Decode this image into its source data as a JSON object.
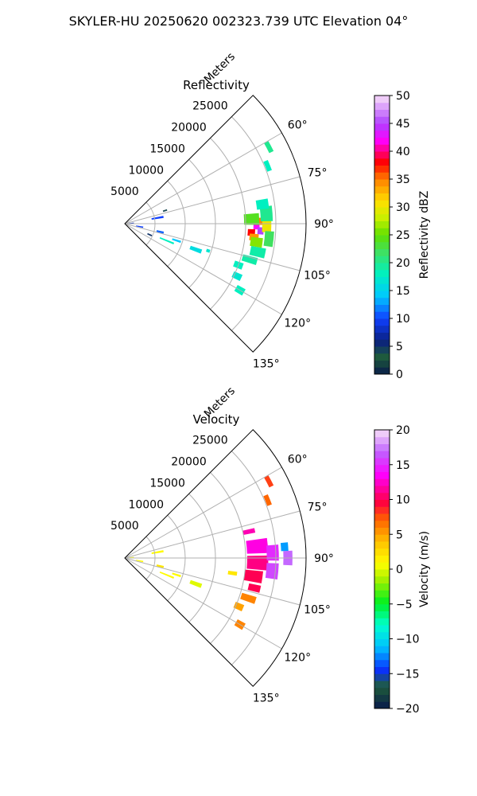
{
  "title": "SKYLER-HU  20250620  002323.739 UTC Elevation 04°",
  "colors": {
    "grid": "#b0b0b0",
    "axis": "#000000"
  },
  "chart_data": [
    {
      "type": "polar-ppi",
      "title": "Reflectivity",
      "radial_label": "Meters",
      "radial_ticks": [
        "5000",
        "10000",
        "15000",
        "20000",
        "25000"
      ],
      "radial_tick_values": [
        5000,
        10000,
        15000,
        20000,
        25000
      ],
      "rlim": [
        0,
        30000
      ],
      "theta_ticks": [
        "60°",
        "75°",
        "90°",
        "105°",
        "120°",
        "135°"
      ],
      "theta_tick_values": [
        60,
        75,
        90,
        105,
        120,
        135
      ],
      "theta_range": [
        45,
        135
      ],
      "grid": true,
      "colorbar": {
        "label": "Reflectivity dBZ",
        "ticks": [
          "0",
          "5",
          "10",
          "15",
          "20",
          "25",
          "30",
          "35",
          "40",
          "45",
          "50"
        ],
        "range": [
          0,
          50
        ]
      },
      "echoes": [
        {
          "az": 91,
          "r": 21800,
          "daz": 3,
          "dr": 1000,
          "value": 42
        },
        {
          "az": 93,
          "r": 22500,
          "daz": 3,
          "dr": 1000,
          "value": 45
        },
        {
          "az": 94,
          "r": 21000,
          "daz": 3,
          "dr": 1200,
          "value": 38
        },
        {
          "az": 89,
          "r": 22800,
          "daz": 3,
          "dr": 1200,
          "value": 35
        },
        {
          "az": 96,
          "r": 21500,
          "daz": 3,
          "dr": 1500,
          "value": 34
        },
        {
          "az": 91,
          "r": 23500,
          "daz": 5,
          "dr": 1500,
          "value": 30
        },
        {
          "az": 98,
          "r": 22000,
          "daz": 4,
          "dr": 2000,
          "value": 26
        },
        {
          "az": 88,
          "r": 21000,
          "daz": 5,
          "dr": 2500,
          "value": 24
        },
        {
          "az": 96,
          "r": 24000,
          "daz": 6,
          "dr": 1500,
          "value": 22
        },
        {
          "az": 86,
          "r": 23500,
          "daz": 6,
          "dr": 2000,
          "value": 20
        },
        {
          "az": 102,
          "r": 22500,
          "daz": 4,
          "dr": 2500,
          "value": 19
        },
        {
          "az": 82,
          "r": 23000,
          "daz": 4,
          "dr": 2000,
          "value": 18
        },
        {
          "az": 62,
          "r": 27000,
          "daz": 4,
          "dr": 800,
          "value": 20
        },
        {
          "az": 68,
          "r": 25500,
          "daz": 4,
          "dr": 800,
          "value": 18
        },
        {
          "az": 106,
          "r": 21500,
          "daz": 3,
          "dr": 2500,
          "value": 19
        },
        {
          "az": 110,
          "r": 20000,
          "daz": 3,
          "dr": 1500,
          "value": 18
        },
        {
          "az": 115,
          "r": 20500,
          "daz": 3,
          "dr": 1500,
          "value": 17
        },
        {
          "az": 120,
          "r": 22000,
          "daz": 3,
          "dr": 1500,
          "value": 18
        },
        {
          "az": 108,
          "r": 14500,
          "daz": 2,
          "dr": 600,
          "value": 17
        },
        {
          "az": 108,
          "r": 9000,
          "daz": 2,
          "dr": 1500,
          "value": 14
        },
        {
          "az": 112,
          "r": 7500,
          "daz": 2,
          "dr": 2500,
          "value": 18
        },
        {
          "az": 103,
          "r": 6000,
          "daz": 3,
          "dr": 1200,
          "value": 11
        },
        {
          "az": 101,
          "r": 2500,
          "daz": 4,
          "dr": 1200,
          "value": 10
        },
        {
          "az": 87,
          "r": 1000,
          "daz": 8,
          "dr": 1000,
          "value": 8
        },
        {
          "az": 80,
          "r": 5500,
          "daz": 3,
          "dr": 2000,
          "value": 10
        },
        {
          "az": 72,
          "r": 7000,
          "daz": 2,
          "dr": 700,
          "value": 4
        },
        {
          "az": 114,
          "r": 4500,
          "daz": 3,
          "dr": 800,
          "value": 5
        },
        {
          "az": 110,
          "r": 12500,
          "daz": 3,
          "dr": 2000,
          "value": 16
        }
      ]
    },
    {
      "type": "polar-ppi",
      "title": "Velocity",
      "radial_label": "Meters",
      "radial_ticks": [
        "5000",
        "10000",
        "15000",
        "20000",
        "25000"
      ],
      "radial_tick_values": [
        5000,
        10000,
        15000,
        20000,
        25000
      ],
      "rlim": [
        0,
        30000
      ],
      "theta_ticks": [
        "60°",
        "75°",
        "90°",
        "105°",
        "120°",
        "135°"
      ],
      "theta_tick_values": [
        60,
        75,
        90,
        105,
        120,
        135
      ],
      "theta_range": [
        45,
        135
      ],
      "grid": true,
      "colorbar": {
        "label": "Velocity (m/s)",
        "ticks": [
          "−20",
          "−15",
          "−10",
          "−5",
          "0",
          "5",
          "10",
          "15",
          "20"
        ],
        "range": [
          -20,
          20
        ]
      },
      "echoes": [
        {
          "az": 85,
          "r": 22000,
          "daz": 6,
          "dr": 3500,
          "value": 13
        },
        {
          "az": 92,
          "r": 22000,
          "daz": 6,
          "dr": 3500,
          "value": 11
        },
        {
          "az": 98,
          "r": 21500,
          "daz": 5,
          "dr": 3000,
          "value": 10
        },
        {
          "az": 88,
          "r": 24500,
          "daz": 6,
          "dr": 2000,
          "value": 15
        },
        {
          "az": 95,
          "r": 24500,
          "daz": 6,
          "dr": 2000,
          "value": 16
        },
        {
          "az": 90,
          "r": 27000,
          "daz": 5,
          "dr": 1500,
          "value": 17
        },
        {
          "az": 86,
          "r": 26500,
          "daz": 3,
          "dr": 1200,
          "value": -12
        },
        {
          "az": 103,
          "r": 22000,
          "daz": 3,
          "dr": 2000,
          "value": 10
        },
        {
          "az": 78,
          "r": 21000,
          "daz": 2,
          "dr": 2000,
          "value": 12
        },
        {
          "az": 62,
          "r": 27000,
          "daz": 4,
          "dr": 800,
          "value": 8
        },
        {
          "az": 68,
          "r": 25500,
          "daz": 4,
          "dr": 800,
          "value": 7
        },
        {
          "az": 108,
          "r": 21500,
          "daz": 3,
          "dr": 2500,
          "value": 6
        },
        {
          "az": 113,
          "r": 20500,
          "daz": 3,
          "dr": 1500,
          "value": 5
        },
        {
          "az": 120,
          "r": 22000,
          "daz": 3,
          "dr": 1500,
          "value": 6
        },
        {
          "az": 98,
          "r": 18000,
          "daz": 2,
          "dr": 1500,
          "value": 2
        },
        {
          "az": 108,
          "r": 9000,
          "daz": 2,
          "dr": 1500,
          "value": 1
        },
        {
          "az": 112,
          "r": 7500,
          "daz": 2,
          "dr": 2500,
          "value": 1
        },
        {
          "az": 103,
          "r": 6000,
          "daz": 3,
          "dr": 1200,
          "value": 2
        },
        {
          "az": 101,
          "r": 2500,
          "daz": 4,
          "dr": 1200,
          "value": 1
        },
        {
          "az": 87,
          "r": 1000,
          "daz": 8,
          "dr": 1000,
          "value": 1
        },
        {
          "az": 80,
          "r": 5500,
          "daz": 3,
          "dr": 2000,
          "value": 1
        },
        {
          "az": 110,
          "r": 12500,
          "daz": 3,
          "dr": 2000,
          "value": 0
        }
      ]
    }
  ]
}
